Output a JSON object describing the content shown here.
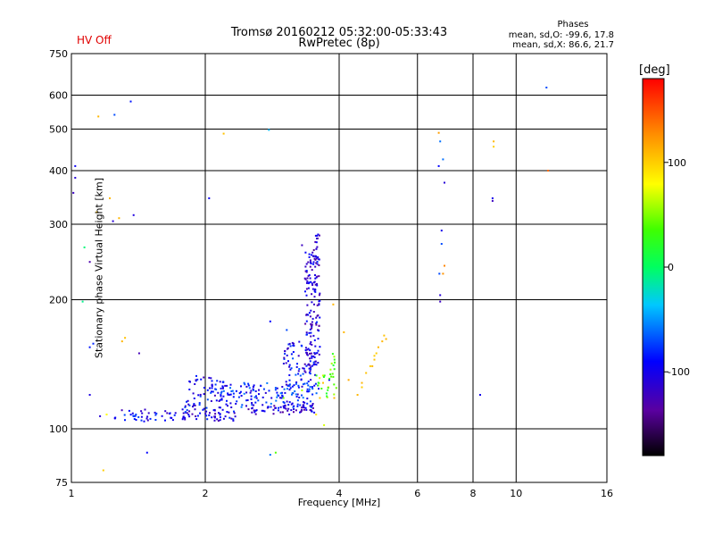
{
  "header": {
    "title_line1": "Tromsø 20160212 05:32:00-05:33:43",
    "title_line2": "RwPretec (8p)",
    "status": "HV Off",
    "stats_title": "Phases",
    "stats_o": "mean, sd,O: -99.6, 17.8",
    "stats_x": "mean, sd,X:  86.6, 21.7"
  },
  "colors": {
    "status": "#e00000",
    "grid": "#000000"
  },
  "chart_data": {
    "type": "scatter",
    "xlabel": "Frequency [MHz]",
    "ylabel": "Stationary phase Virtual Height [km]",
    "xscale": "log",
    "yscale": "log",
    "xlim": [
      1,
      16
    ],
    "ylim": [
      75,
      750
    ],
    "xticks": [
      1,
      2,
      4,
      6,
      8,
      10,
      16
    ],
    "xtick_labels": [
      "1",
      "2",
      "4",
      "6",
      "8",
      "10",
      "16"
    ],
    "yticks": [
      75,
      100,
      200,
      300,
      400,
      500,
      600,
      750
    ],
    "ytick_labels": [
      "75",
      "100",
      "200",
      "300",
      "400",
      "500",
      "600",
      "750"
    ],
    "grid": true,
    "colorbar": {
      "label": "[deg]",
      "range": [
        -180,
        180
      ],
      "ticks": [
        100,
        0,
        -100
      ],
      "tick_labels": [
        "100",
        "0",
        "-100"
      ]
    },
    "series": [
      {
        "points": [
          [
            1.02,
            410,
            -95
          ],
          [
            1.02,
            385,
            -110
          ],
          [
            1.01,
            355,
            -120
          ],
          [
            1.1,
            245,
            -130
          ],
          [
            1.1,
            120,
            -105
          ],
          [
            1.1,
            155,
            -85
          ],
          [
            1.12,
            158,
            -80
          ],
          [
            1.16,
            107,
            -110
          ],
          [
            1.24,
            305,
            -110
          ],
          [
            1.38,
            315,
            -105
          ],
          [
            1.25,
            540,
            -70
          ],
          [
            1.36,
            580,
            -85
          ],
          [
            1.42,
            150,
            -125
          ],
          [
            1.48,
            88,
            -90
          ],
          [
            2.04,
            345,
            -95
          ],
          [
            2.8,
            178,
            -90
          ],
          [
            2.78,
            498,
            -40
          ],
          [
            3.3,
            268,
            -120
          ],
          [
            8.3,
            120,
            -100
          ],
          [
            8.85,
            345,
            -100
          ],
          [
            8.85,
            340,
            -120
          ],
          [
            11.7,
            625,
            -70
          ],
          [
            6.9,
            375,
            -110
          ],
          [
            6.75,
            205,
            -110
          ],
          [
            6.75,
            198,
            -120
          ],
          [
            6.8,
            290,
            -100
          ],
          [
            6.8,
            270,
            -70
          ],
          [
            6.7,
            410,
            -90
          ],
          [
            6.75,
            468,
            -60
          ],
          [
            6.85,
            425,
            -60
          ],
          [
            6.72,
            230,
            -70
          ],
          [
            2.8,
            87,
            -60
          ],
          [
            3.05,
            170,
            -70
          ],
          [
            3.55,
            150,
            -85
          ],
          [
            3.8,
            130,
            -90
          ]
        ]
      },
      {
        "points": [
          [
            1.07,
            265,
            -5
          ],
          [
            1.06,
            198,
            -10
          ],
          [
            1.15,
            535,
            110
          ],
          [
            1.14,
            320,
            105
          ],
          [
            1.22,
            345,
            110
          ],
          [
            1.28,
            310,
            110
          ],
          [
            1.2,
            108,
            80
          ],
          [
            1.3,
            160,
            110
          ],
          [
            1.32,
            163,
            105
          ],
          [
            1.18,
            80,
            100
          ],
          [
            2.2,
            488,
            105
          ],
          [
            2.88,
            88,
            40
          ],
          [
            3.7,
            102,
            70
          ],
          [
            3.55,
            108,
            90
          ],
          [
            3.62,
            118,
            100
          ],
          [
            3.68,
            128,
            105
          ],
          [
            3.78,
            125,
            105
          ],
          [
            3.88,
            195,
            110
          ],
          [
            4.1,
            168,
            110
          ],
          [
            4.4,
            120,
            110
          ],
          [
            4.5,
            125,
            100
          ],
          [
            4.8,
            145,
            105
          ],
          [
            4.85,
            150,
            100
          ],
          [
            4.9,
            155,
            110
          ],
          [
            4.7,
            140,
            100
          ],
          [
            5.0,
            160,
            110
          ],
          [
            5.05,
            165,
            105
          ],
          [
            5.1,
            162,
            110
          ],
          [
            6.7,
            490,
            120
          ],
          [
            6.9,
            240,
            130
          ],
          [
            6.85,
            230,
            125
          ],
          [
            8.9,
            468,
            110
          ],
          [
            8.9,
            455,
            100
          ],
          [
            11.8,
            400,
            140
          ],
          [
            3.0,
            118,
            50
          ],
          [
            3.3,
            123,
            60
          ],
          [
            3.9,
            118,
            110
          ],
          [
            4.2,
            130,
            115
          ],
          [
            4.6,
            135,
            105
          ],
          [
            4.5,
            128,
            110
          ],
          [
            4.75,
            140,
            110
          ],
          [
            4.8,
            148,
            100
          ]
        ]
      }
    ],
    "clusters": [
      {
        "f": [
          1.25,
          1.95
        ],
        "h": [
          104,
          111
        ],
        "n": 60,
        "phase": -100
      },
      {
        "f": [
          1.8,
          2.2
        ],
        "h": [
          110,
          134
        ],
        "n": 70,
        "phase": -95
      },
      {
        "f": [
          2.0,
          2.35
        ],
        "h": [
          104,
          110
        ],
        "n": 30,
        "phase": -105
      },
      {
        "f": [
          2.15,
          3.6
        ],
        "h": [
          112,
          128
        ],
        "n": 150,
        "phase": -85
      },
      {
        "f": [
          2.5,
          3.55
        ],
        "h": [
          108,
          114
        ],
        "n": 60,
        "phase": -110
      },
      {
        "f": [
          3.0,
          3.55
        ],
        "h": [
          125,
          160
        ],
        "n": 80,
        "phase": -95
      },
      {
        "f": [
          3.35,
          3.62
        ],
        "h": [
          140,
          260
        ],
        "n": 140,
        "phase": -108
      },
      {
        "f": [
          3.5,
          3.62
        ],
        "h": [
          240,
          285
        ],
        "n": 20,
        "phase": -115
      },
      {
        "f": [
          3.55,
          3.95
        ],
        "h": [
          118,
          150
        ],
        "n": 30,
        "phase": 40
      }
    ]
  }
}
